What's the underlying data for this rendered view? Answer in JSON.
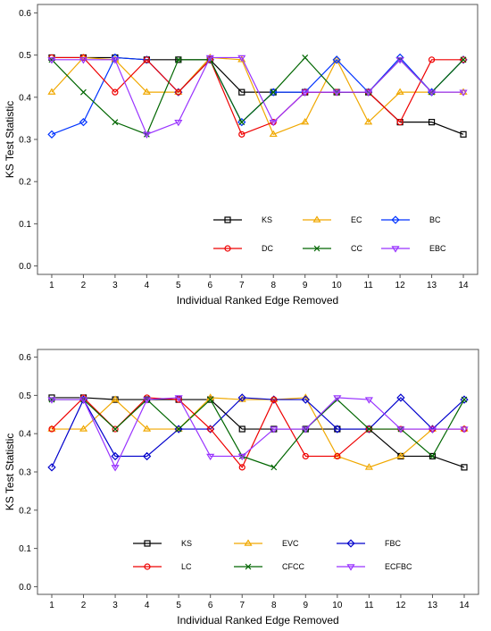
{
  "chart_data": [
    {
      "type": "line",
      "title": "",
      "xlabel": "Individual Ranked Edge Removed",
      "ylabel": "KS Test Statistic",
      "x": [
        1,
        2,
        3,
        4,
        5,
        6,
        7,
        8,
        9,
        10,
        11,
        12,
        13,
        14
      ],
      "xlim": [
        0.55,
        14.45
      ],
      "ylim": [
        -0.02,
        0.62
      ],
      "yticks": [
        "0.0",
        "0.1",
        "0.2",
        "0.3",
        "0.4",
        "0.5",
        "0.6"
      ],
      "xticks": [
        "1",
        "2",
        "3",
        "4",
        "5",
        "6",
        "7",
        "8",
        "9",
        "10",
        "11",
        "12",
        "13",
        "14"
      ],
      "grid": false,
      "legend_position": "bottom-right",
      "series": [
        {
          "name": "KS",
          "color": "#000000",
          "marker": "square",
          "values": [
            0.494,
            0.494,
            0.494,
            0.489,
            0.489,
            0.489,
            0.412,
            0.412,
            0.412,
            0.412,
            0.412,
            0.341,
            0.341,
            0.312
          ]
        },
        {
          "name": "EC",
          "color": "#f0a800",
          "marker": "triangle-up",
          "values": [
            0.412,
            0.494,
            0.489,
            0.412,
            0.412,
            0.494,
            0.489,
            0.312,
            0.341,
            0.489,
            0.341,
            0.412,
            0.412,
            0.412
          ]
        },
        {
          "name": "BC",
          "color": "#0033ff",
          "marker": "diamond",
          "values": [
            0.312,
            0.341,
            0.494,
            0.489,
            0.412,
            0.489,
            0.341,
            0.412,
            0.412,
            0.489,
            0.412,
            0.494,
            0.412,
            0.489
          ]
        },
        {
          "name": "DC",
          "color": "#ee0000",
          "marker": "circle",
          "values": [
            0.494,
            0.494,
            0.412,
            0.489,
            0.412,
            0.489,
            0.312,
            0.341,
            0.412,
            0.412,
            0.412,
            0.341,
            0.489,
            0.489
          ]
        },
        {
          "name": "CC",
          "color": "#006600",
          "marker": "x",
          "values": [
            0.489,
            0.412,
            0.341,
            0.312,
            0.489,
            0.489,
            0.341,
            0.412,
            0.494,
            0.412,
            0.412,
            0.489,
            0.412,
            0.489
          ]
        },
        {
          "name": "EBC",
          "color": "#9933ff",
          "marker": "triangle-down",
          "values": [
            0.489,
            0.489,
            0.489,
            0.312,
            0.341,
            0.494,
            0.494,
            0.341,
            0.412,
            0.412,
            0.412,
            0.489,
            0.412,
            0.412
          ]
        }
      ]
    },
    {
      "type": "line",
      "title": "",
      "xlabel": "Individual Ranked Edge Removed",
      "ylabel": "KS Test Statistic",
      "x": [
        1,
        2,
        3,
        4,
        5,
        6,
        7,
        8,
        9,
        10,
        11,
        12,
        13,
        14
      ],
      "xlim": [
        0.55,
        14.45
      ],
      "ylim": [
        -0.02,
        0.62
      ],
      "yticks": [
        "0.0",
        "0.1",
        "0.2",
        "0.3",
        "0.4",
        "0.5",
        "0.6"
      ],
      "xticks": [
        "1",
        "2",
        "3",
        "4",
        "5",
        "6",
        "7",
        "8",
        "9",
        "10",
        "11",
        "12",
        "13",
        "14"
      ],
      "grid": false,
      "legend_position": "bottom-right",
      "series": [
        {
          "name": "KS",
          "color": "#000000",
          "marker": "square",
          "values": [
            0.494,
            0.494,
            0.489,
            0.489,
            0.489,
            0.489,
            0.412,
            0.412,
            0.412,
            0.412,
            0.412,
            0.341,
            0.341,
            0.312
          ]
        },
        {
          "name": "EVC",
          "color": "#f0a800",
          "marker": "triangle-up",
          "values": [
            0.412,
            0.412,
            0.489,
            0.412,
            0.412,
            0.494,
            0.489,
            0.489,
            0.494,
            0.341,
            0.312,
            0.341,
            0.412,
            0.412
          ]
        },
        {
          "name": "FBC",
          "color": "#0000cc",
          "marker": "diamond",
          "values": [
            0.312,
            0.489,
            0.341,
            0.341,
            0.412,
            0.412,
            0.494,
            0.489,
            0.489,
            0.412,
            0.412,
            0.494,
            0.412,
            0.489
          ]
        },
        {
          "name": "LC",
          "color": "#ee0000",
          "marker": "circle",
          "values": [
            0.412,
            0.494,
            0.412,
            0.494,
            0.489,
            0.412,
            0.312,
            0.489,
            0.341,
            0.341,
            0.412,
            0.412,
            0.412,
            0.412
          ]
        },
        {
          "name": "CFCC",
          "color": "#006600",
          "marker": "x",
          "values": [
            0.489,
            0.489,
            0.412,
            0.489,
            0.412,
            0.489,
            0.341,
            0.312,
            0.412,
            0.489,
            0.412,
            0.412,
            0.341,
            0.489
          ]
        },
        {
          "name": "ECFBC",
          "color": "#9933ff",
          "marker": "triangle-down",
          "values": [
            0.489,
            0.489,
            0.312,
            0.489,
            0.494,
            0.341,
            0.341,
            0.412,
            0.412,
            0.494,
            0.489,
            0.412,
            0.412,
            0.412
          ]
        }
      ]
    }
  ]
}
